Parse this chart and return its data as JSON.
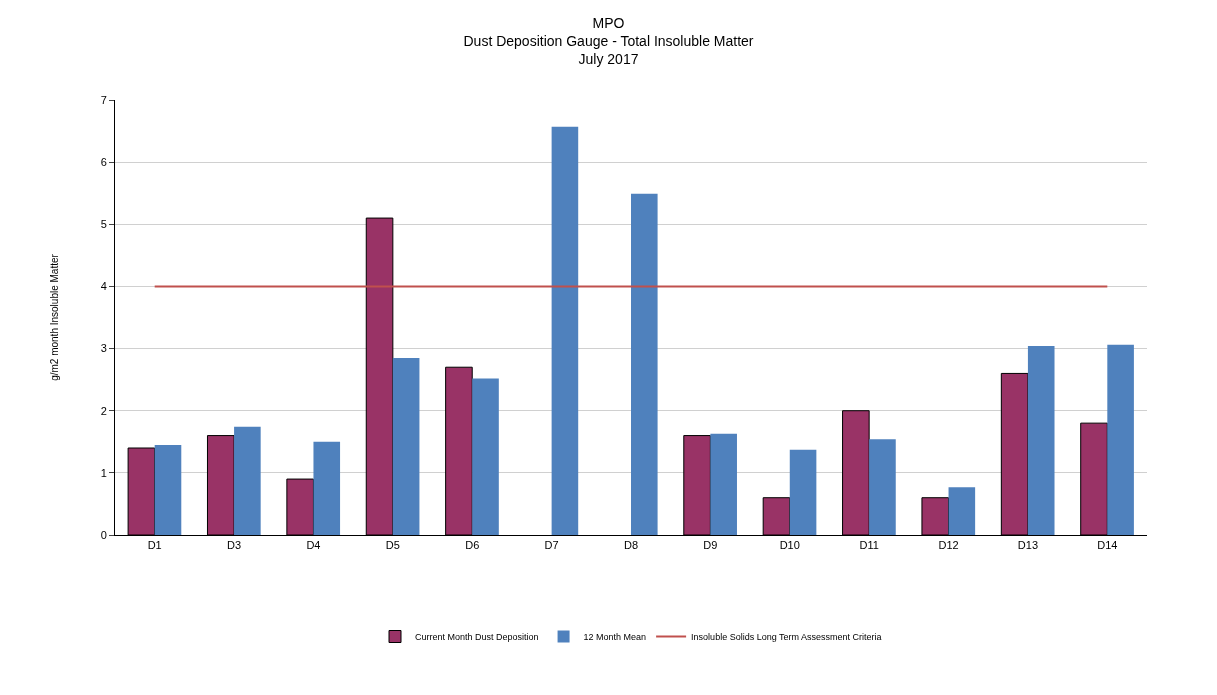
{
  "chart_data": {
    "type": "bar",
    "title": "MPO\nDust Deposition Gauge - Total Insoluble Matter\nJuly 2017",
    "ylabel": "g/m2 month Insoluble Matter",
    "categories": [
      "D1",
      "D3",
      "D4",
      "D5",
      "D6",
      "D7",
      "D8",
      "D9",
      "D10",
      "D11",
      "D12",
      "D13",
      "D14"
    ],
    "series": [
      {
        "name": "Current Month Dust Deposition",
        "color": "#993366",
        "values": [
          1.4,
          1.6,
          0.9,
          5.1,
          2.7,
          null,
          null,
          1.6,
          0.6,
          2.0,
          0.6,
          2.6,
          1.8
        ]
      },
      {
        "name": "12 Month Mean",
        "color": "#4f81bd",
        "values": [
          1.45,
          1.74,
          1.5,
          2.85,
          2.52,
          6.57,
          5.49,
          1.63,
          1.37,
          1.54,
          0.77,
          3.04,
          3.06
        ]
      },
      {
        "name": "Insoluble Solids Long Term Assessment Criteria",
        "type": "line",
        "color": "#c0504d",
        "values": [
          4,
          4,
          4,
          4,
          4,
          4,
          4,
          4,
          4,
          4,
          4,
          4,
          4
        ]
      }
    ],
    "ylim": [
      0,
      7
    ],
    "yticks": [
      0,
      1,
      2,
      3,
      4,
      5,
      6,
      7
    ],
    "grid": "y",
    "legend": "bottom"
  }
}
